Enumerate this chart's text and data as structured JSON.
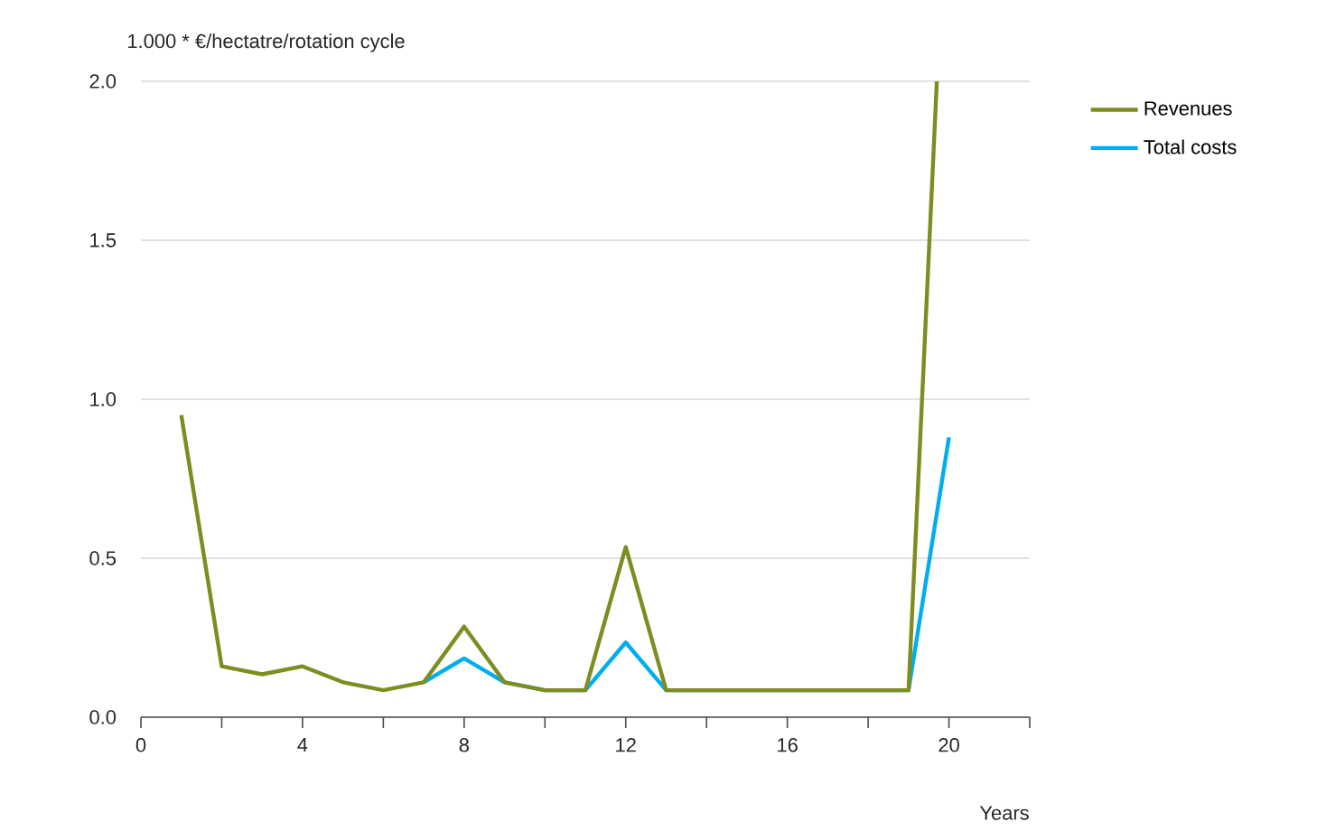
{
  "chart_data": {
    "type": "line",
    "ylabel": "1.000 * €/hectatre/rotation cycle",
    "xlabel": "Years",
    "series": [
      {
        "name": "Revenues",
        "color": "#7f8c1f",
        "x": [
          1,
          2,
          3,
          4,
          5,
          6,
          7,
          8,
          9,
          10,
          11,
          12,
          13,
          14,
          15,
          16,
          17,
          18,
          19,
          19.7
        ],
        "values": [
          0.95,
          0.16,
          0.135,
          0.16,
          0.11,
          0.085,
          0.11,
          0.285,
          0.11,
          0.085,
          0.085,
          0.535,
          0.085,
          0.085,
          0.085,
          0.085,
          0.085,
          0.085,
          0.085,
          2.0
        ]
      },
      {
        "name": "Total costs",
        "color": "#00aeef",
        "x": [
          7,
          8,
          9,
          10,
          11,
          12,
          13,
          19,
          20
        ],
        "values": [
          0.11,
          0.185,
          0.11,
          0.085,
          0.085,
          0.235,
          0.085,
          0.085,
          0.88
        ]
      }
    ],
    "xlim": [
      0,
      22
    ],
    "xticks": [
      0,
      {
        "value": 2,
        "label": null
      },
      4,
      {
        "value": 6,
        "label": null
      },
      8,
      {
        "value": 10,
        "label": null
      },
      12,
      {
        "value": 14,
        "label": null
      },
      16,
      {
        "value": 18,
        "label": null
      },
      20,
      {
        "value": 22,
        "label": null
      }
    ],
    "ylim": [
      0,
      2
    ],
    "yticks": [
      {
        "value": 0,
        "label": "0.0"
      },
      {
        "value": 0.5,
        "label": "0.5"
      },
      {
        "value": 1,
        "label": "1.0"
      },
      {
        "value": 1.5,
        "label": "1.5"
      },
      {
        "value": 2,
        "label": "2.0"
      }
    ],
    "grid": "y",
    "legend": "top right",
    "line_style": "solid",
    "marker": "none"
  }
}
